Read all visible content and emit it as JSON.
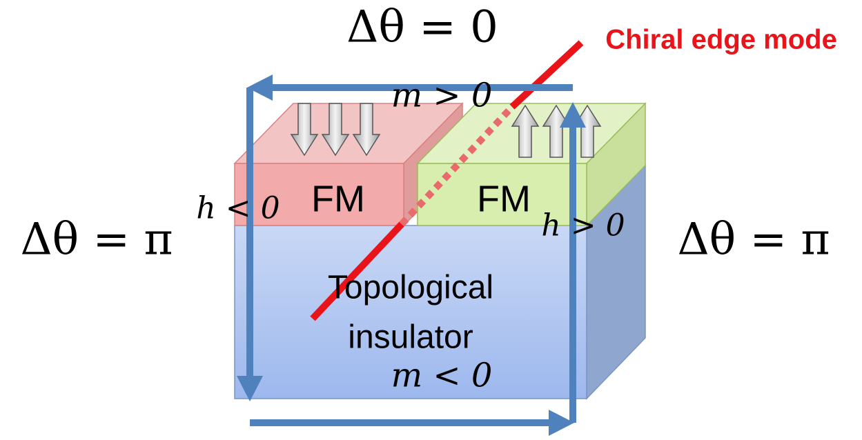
{
  "labels": {
    "top_phase": "Δθ = 0",
    "chiral": "Chiral edge mode",
    "m_top": "m > 0",
    "left_phase": "Δθ = π",
    "right_phase": "Δθ = π",
    "fm_left": "FM",
    "fm_right": "FM",
    "h_left": "h < 0",
    "h_right": "h > 0",
    "ti_line1": "Topological",
    "ti_line2": "insulator",
    "m_bottom": "m < 0"
  }
}
